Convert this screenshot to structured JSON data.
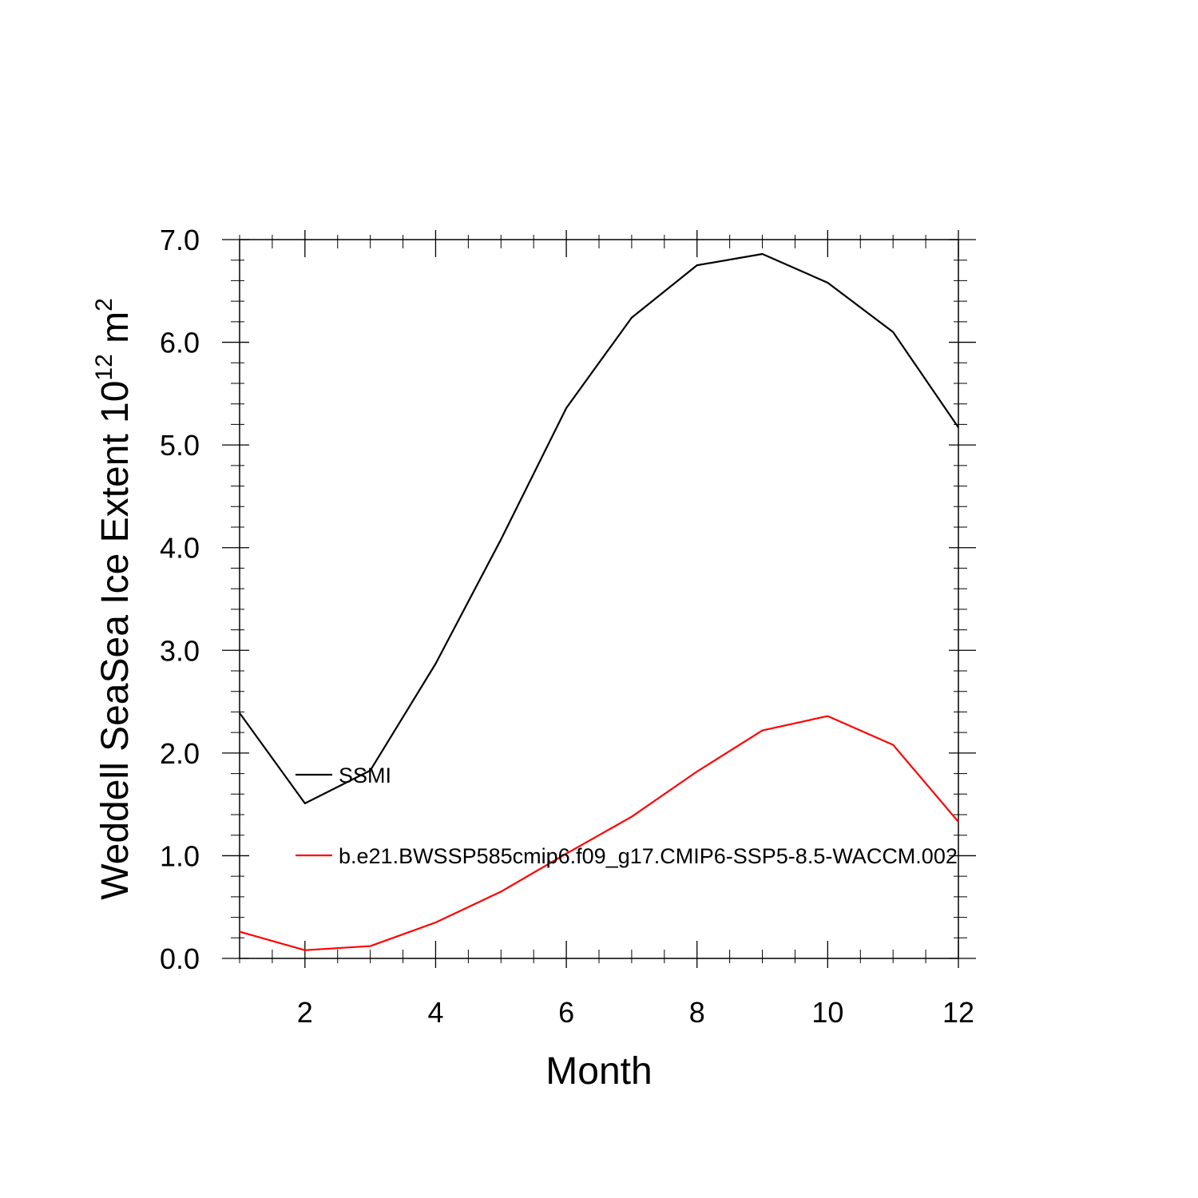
{
  "chart_data": {
    "type": "line",
    "title": "",
    "xlabel": "Month",
    "ylabel": {
      "main": "Weddell SeaSea Ice Extent 10",
      "superscript1": "12",
      "unit": " m",
      "superscript2": "2"
    },
    "xlim": [
      1,
      12
    ],
    "ylim": [
      0,
      7
    ],
    "x_ticks": [
      "2",
      "4",
      "6",
      "8",
      "10",
      "12"
    ],
    "y_ticks": [
      "0.0",
      "1.0",
      "2.0",
      "3.0",
      "4.0",
      "5.0",
      "6.0",
      "7.0"
    ],
    "x": [
      1,
      2,
      3,
      4,
      5,
      6,
      7,
      8,
      9,
      10,
      11,
      12
    ],
    "series": [
      {
        "name": "SSMI",
        "color": "#000000",
        "values": [
          2.39,
          1.51,
          1.83,
          2.87,
          4.08,
          5.36,
          6.24,
          6.75,
          6.86,
          6.58,
          6.1,
          5.17
        ]
      },
      {
        "name": "b.e21.BWSSP585cmip6.f09_g17.CMIP6-SSP5-8.5-WACCM.002",
        "color": "#ff0000",
        "values": [
          0.26,
          0.08,
          0.12,
          0.35,
          0.65,
          1.02,
          1.38,
          1.82,
          2.22,
          2.36,
          2.08,
          1.33
        ]
      }
    ],
    "legend_placement": "inside-left",
    "grid": false
  }
}
